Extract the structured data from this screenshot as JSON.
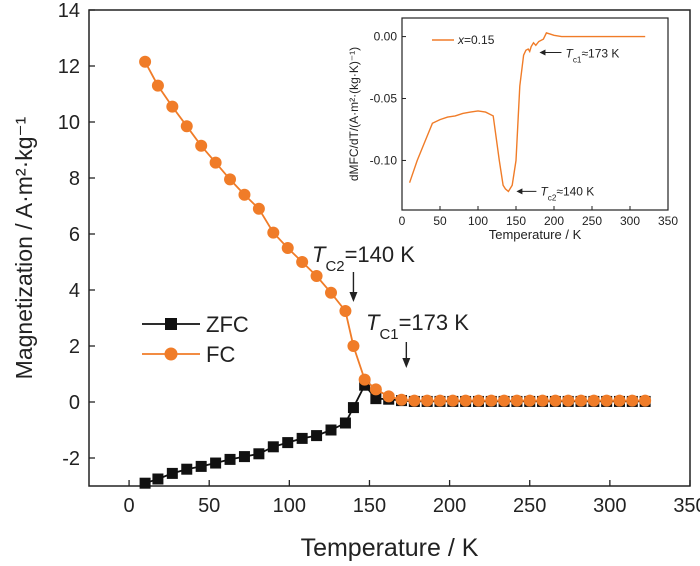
{
  "chart_data": [
    {
      "type": "line",
      "xlabel": "Temperature / K",
      "ylabel": "Magnetization / A·m²·kg⁻¹",
      "xlim": [
        -25,
        350
      ],
      "ylim": [
        -3,
        14
      ],
      "xticks": [
        0,
        50,
        100,
        150,
        200,
        250,
        300,
        350
      ],
      "yticks": [
        -2,
        0,
        2,
        4,
        6,
        8,
        10,
        12,
        14
      ],
      "grid": false,
      "legend_position": "center-left",
      "series": [
        {
          "name": "ZFC",
          "color": "#111111",
          "marker": "square",
          "x": [
            10,
            18,
            27,
            36,
            45,
            54,
            63,
            72,
            81,
            90,
            99,
            108,
            117,
            126,
            135,
            140,
            147,
            154,
            162,
            170,
            178,
            186,
            194,
            202,
            210,
            218,
            226,
            234,
            242,
            250,
            258,
            266,
            274,
            282,
            290,
            298,
            306,
            314,
            322
          ],
          "y": [
            -2.9,
            -2.75,
            -2.55,
            -2.4,
            -2.3,
            -2.18,
            -2.05,
            -1.95,
            -1.85,
            -1.6,
            -1.45,
            -1.3,
            -1.2,
            -1.0,
            -0.75,
            -0.2,
            0.6,
            0.12,
            0.1,
            0.05,
            0.02,
            0.02,
            0.02,
            0.02,
            0.02,
            0.02,
            0.02,
            0.02,
            0.02,
            0.02,
            0.02,
            0.02,
            0.02,
            0.02,
            0.02,
            0.02,
            0.02,
            0.02,
            0.02
          ]
        },
        {
          "name": "FC",
          "color": "#f07c28",
          "marker": "circle",
          "x": [
            10,
            18,
            27,
            36,
            45,
            54,
            63,
            72,
            81,
            90,
            99,
            108,
            117,
            126,
            135,
            140,
            147,
            154,
            162,
            170,
            178,
            186,
            194,
            202,
            210,
            218,
            226,
            234,
            242,
            250,
            258,
            266,
            274,
            282,
            290,
            298,
            306,
            314,
            322
          ],
          "y": [
            12.15,
            11.3,
            10.55,
            9.85,
            9.15,
            8.55,
            7.95,
            7.4,
            6.9,
            6.05,
            5.5,
            5.0,
            4.5,
            3.9,
            3.25,
            2.0,
            0.8,
            0.45,
            0.2,
            0.08,
            0.05,
            0.05,
            0.05,
            0.05,
            0.05,
            0.05,
            0.05,
            0.05,
            0.05,
            0.05,
            0.05,
            0.05,
            0.05,
            0.05,
            0.05,
            0.05,
            0.05,
            0.05,
            0.05
          ]
        }
      ],
      "annotations": [
        {
          "text": "TC2=140 K",
          "main": "T",
          "sub": "C2",
          "rest": "=140 K",
          "x": 140
        },
        {
          "text": "TC1=173 K",
          "main": "T",
          "sub": "C1",
          "rest": "=173 K",
          "x": 173
        }
      ]
    },
    {
      "type": "line",
      "role": "inset",
      "xlabel": "Temperature / K",
      "ylabel": "dMFC/dT/(A·m²·(kg·K)⁻¹)",
      "xlim": [
        0,
        350
      ],
      "ylim": [
        -0.14,
        0.015
      ],
      "xticks": [
        0,
        50,
        100,
        150,
        200,
        250,
        300,
        350
      ],
      "yticks": [
        0.0,
        -0.05,
        -0.1
      ],
      "ytick_labels": [
        "0.00",
        "-0.05",
        "-0.10"
      ],
      "series": [
        {
          "name": "x=0.15",
          "color": "#f07c28",
          "x": [
            10,
            20,
            30,
            40,
            50,
            60,
            70,
            80,
            90,
            100,
            110,
            120,
            128,
            133,
            136,
            140,
            145,
            150,
            155,
            160,
            163,
            166,
            168,
            170,
            173,
            176,
            180,
            186,
            190,
            195,
            200,
            210,
            220,
            240,
            260,
            280,
            300,
            320
          ],
          "y": [
            -0.118,
            -0.1,
            -0.085,
            -0.07,
            -0.067,
            -0.065,
            -0.064,
            -0.062,
            -0.061,
            -0.06,
            -0.061,
            -0.064,
            -0.1,
            -0.12,
            -0.123,
            -0.125,
            -0.12,
            -0.1,
            -0.04,
            -0.015,
            -0.011,
            -0.01,
            -0.012,
            -0.008,
            -0.005,
            -0.007,
            -0.004,
            -0.002,
            0.003,
            0.002,
            0.001,
            0.0,
            0.0,
            0.0,
            0.0,
            0.0,
            0.0,
            0.0
          ]
        }
      ],
      "legend_label_italic": "x",
      "legend_label_rest": "=0.15",
      "annotations": [
        {
          "text": "Tc1≈173 K",
          "main": "T",
          "sub": "c1",
          "rest": "≈173 K",
          "x": 173,
          "y": -0.008
        },
        {
          "text": "Tc2≈140 K",
          "main": "T",
          "sub": "c2",
          "rest": "≈140 K",
          "x": 140,
          "y": -0.125
        }
      ]
    }
  ]
}
